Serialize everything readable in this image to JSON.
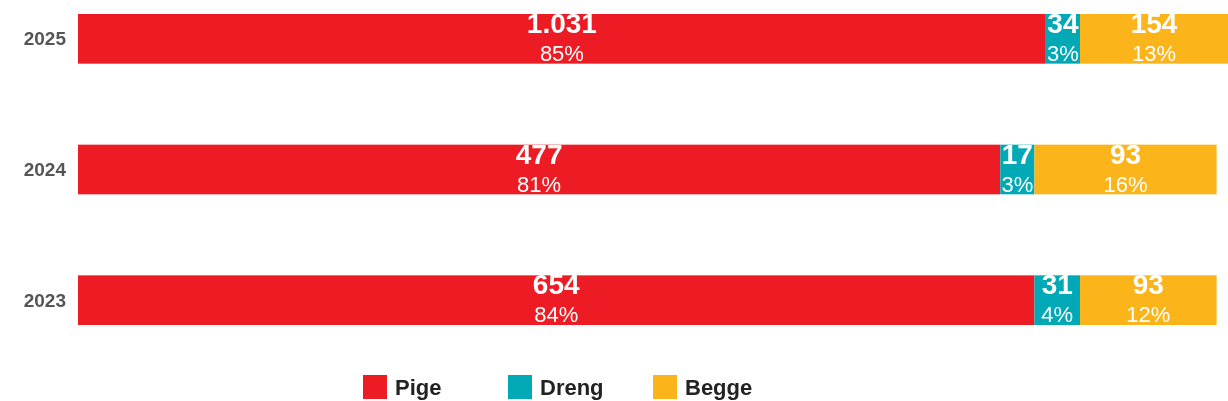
{
  "chart_data": {
    "type": "bar",
    "orientation": "horizontal",
    "stacked": true,
    "categories": [
      "2025",
      "2024",
      "2023"
    ],
    "xlim": [
      0,
      101
    ],
    "tick_labels": "y",
    "legend": "bottom",
    "series": [
      {
        "name": "Pige",
        "color": "#ed1c24",
        "values": [
          85,
          81,
          84
        ],
        "value_labels": [
          "1.031\n85%",
          "477\n81%",
          "654\n84%"
        ]
      },
      {
        "name": "Dreng",
        "color": "#00a9b5",
        "values": [
          3,
          3,
          4
        ],
        "value_labels": [
          "34\n3%",
          "17\n3%",
          "31\n4%"
        ]
      },
      {
        "name": "Begge",
        "color": "#fbb51a",
        "values": [
          13,
          16,
          12
        ],
        "value_labels": [
          "154\n13%",
          "93\n16%",
          "93\n12%"
        ]
      }
    ]
  }
}
